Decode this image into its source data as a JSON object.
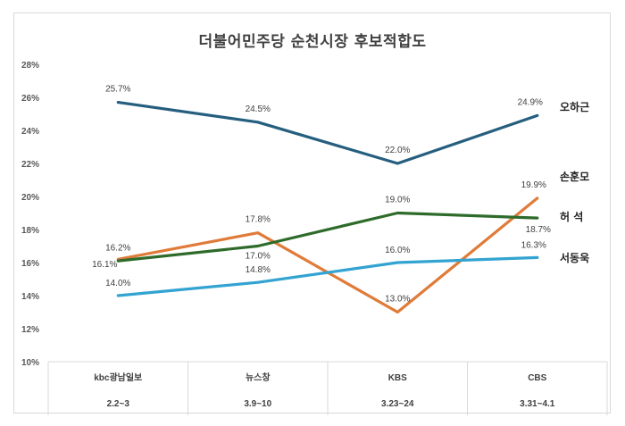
{
  "chart_data": {
    "type": "line",
    "title": "더불어민주당 순천시장 후보적합도",
    "categories": [
      "kbc광남일보",
      "뉴스창",
      "KBS",
      "CBS"
    ],
    "dates": [
      "2.2~3",
      "3.9~10",
      "3.23~24",
      "3.31~4.1"
    ],
    "ylim": [
      10,
      28
    ],
    "yticks": [
      10,
      12,
      14,
      16,
      18,
      20,
      22,
      24,
      26,
      28
    ],
    "ytick_labels": [
      "10%",
      "12%",
      "14%",
      "16%",
      "18%",
      "20%",
      "22%",
      "24%",
      "26%",
      "28%"
    ],
    "xlabel": "",
    "ylabel": "",
    "grid": false,
    "series": [
      {
        "name": "오하근",
        "color": "#255e7e",
        "values": [
          25.7,
          24.5,
          22.0,
          24.9
        ],
        "labels": [
          "25.7%",
          "24.5%",
          "22.0%",
          "24.9%"
        ]
      },
      {
        "name": "손훈모",
        "color": "#e07b39",
        "values": [
          16.2,
          17.8,
          13.0,
          19.9
        ],
        "labels": [
          "16.2%",
          "17.8%",
          "13.0%",
          "19.9%"
        ]
      },
      {
        "name": "허 석",
        "color": "#2e6b2a",
        "values": [
          16.1,
          17.0,
          19.0,
          18.7
        ],
        "labels": [
          "16.1%",
          "17.0%",
          "19.0%",
          "18.7%"
        ]
      },
      {
        "name": "서동욱",
        "color": "#33a3d1",
        "values": [
          14.0,
          14.8,
          16.0,
          16.3
        ],
        "labels": [
          "14.0%",
          "14.8%",
          "16.0%",
          "16.3%"
        ]
      }
    ]
  }
}
